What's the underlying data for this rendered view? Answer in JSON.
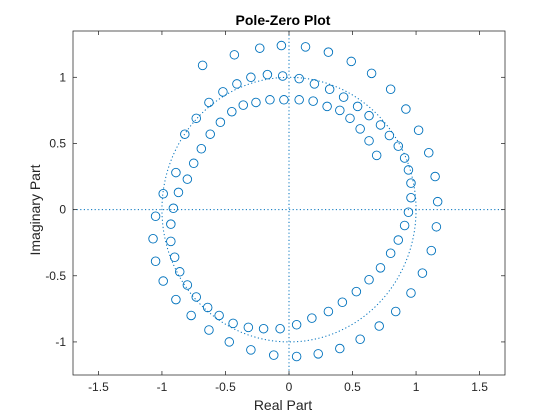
{
  "chart_data": {
    "type": "scatter",
    "title": "Pole-Zero Plot",
    "xlabel": "Real Part",
    "ylabel": "Imaginary Part",
    "xlim": [
      -1.7,
      1.7
    ],
    "ylim": [
      -1.25,
      1.35
    ],
    "xticks": [
      -1.5,
      -1,
      -0.5,
      0,
      0.5,
      1,
      1.5
    ],
    "xtick_labels": [
      "-1.5",
      "-1",
      "-0.5",
      "0",
      "0.5",
      "1",
      "1.5"
    ],
    "yticks": [
      -1,
      -0.5,
      0,
      0.5,
      1
    ],
    "ytick_labels": [
      "-1",
      "-0.5",
      "0",
      "0.5",
      "1"
    ],
    "grid": false,
    "marker": "circle-open",
    "series_color": "#0072BD",
    "unit_circle": true,
    "reference_lines": {
      "x": 0,
      "y": 0
    },
    "series": [
      {
        "kind": "zeros",
        "x": [
          -0.68,
          -0.43,
          -0.23,
          -0.06,
          0.13,
          0.31,
          0.49,
          0.65,
          0.8,
          0.92,
          1.02,
          1.1,
          1.15,
          1.17,
          1.16,
          1.12,
          1.05,
          0.96,
          0.84,
          0.71,
          0.56,
          0.4,
          0.23,
          0.06,
          -0.12,
          -0.3,
          -0.47,
          -0.63,
          -0.77,
          -0.89,
          -0.99,
          -1.05,
          -1.07,
          -1.05,
          -0.99,
          -0.89
        ],
        "y": [
          1.09,
          1.17,
          1.22,
          1.24,
          1.23,
          1.19,
          1.12,
          1.03,
          0.91,
          0.76,
          0.6,
          0.43,
          0.25,
          0.06,
          -0.13,
          -0.31,
          -0.48,
          -0.63,
          -0.77,
          -0.88,
          -0.98,
          -1.05,
          -1.09,
          -1.11,
          -1.1,
          -1.06,
          -1.0,
          -0.91,
          -0.8,
          -0.68,
          -0.54,
          -0.39,
          -0.22,
          -0.05,
          0.12,
          0.28
        ]
      },
      {
        "kind": "zeros",
        "x": [
          -0.82,
          -0.73,
          -0.63,
          -0.52,
          -0.41,
          -0.3,
          -0.17,
          -0.05,
          0.08,
          0.2,
          0.32,
          0.43,
          0.54,
          0.63,
          0.72,
          0.79,
          0.86,
          0.91,
          0.94,
          0.96,
          0.96,
          0.94,
          0.91,
          0.86,
          0.8,
          0.72,
          0.63,
          0.53,
          0.42,
          0.31,
          0.18,
          0.06,
          -0.07,
          -0.2,
          -0.32,
          -0.44,
          -0.55,
          -0.64,
          -0.73,
          -0.8,
          -0.86,
          -0.9,
          -0.93,
          -0.93,
          -0.91,
          -0.87
        ],
        "y": [
          0.57,
          0.69,
          0.81,
          0.89,
          0.95,
          1.0,
          1.02,
          1.01,
          0.99,
          0.95,
          0.91,
          0.85,
          0.78,
          0.71,
          0.64,
          0.56,
          0.48,
          0.39,
          0.3,
          0.2,
          0.09,
          -0.02,
          -0.12,
          -0.23,
          -0.33,
          -0.44,
          -0.53,
          -0.62,
          -0.7,
          -0.77,
          -0.82,
          -0.87,
          -0.9,
          -0.9,
          -0.89,
          -0.86,
          -0.8,
          -0.74,
          -0.66,
          -0.57,
          -0.47,
          -0.36,
          -0.24,
          -0.11,
          0.01,
          0.13
        ]
      },
      {
        "kind": "zeros",
        "x": [
          -0.8,
          -0.75,
          -0.69,
          -0.62,
          -0.54,
          -0.45,
          -0.36,
          -0.26,
          -0.15,
          -0.04,
          0.08,
          0.19,
          0.3,
          0.4,
          0.48,
          0.56,
          0.63,
          0.69
        ],
        "y": [
          0.23,
          0.35,
          0.46,
          0.57,
          0.66,
          0.74,
          0.79,
          0.81,
          0.83,
          0.83,
          0.83,
          0.82,
          0.78,
          0.75,
          0.69,
          0.61,
          0.52,
          0.41
        ]
      }
    ]
  }
}
